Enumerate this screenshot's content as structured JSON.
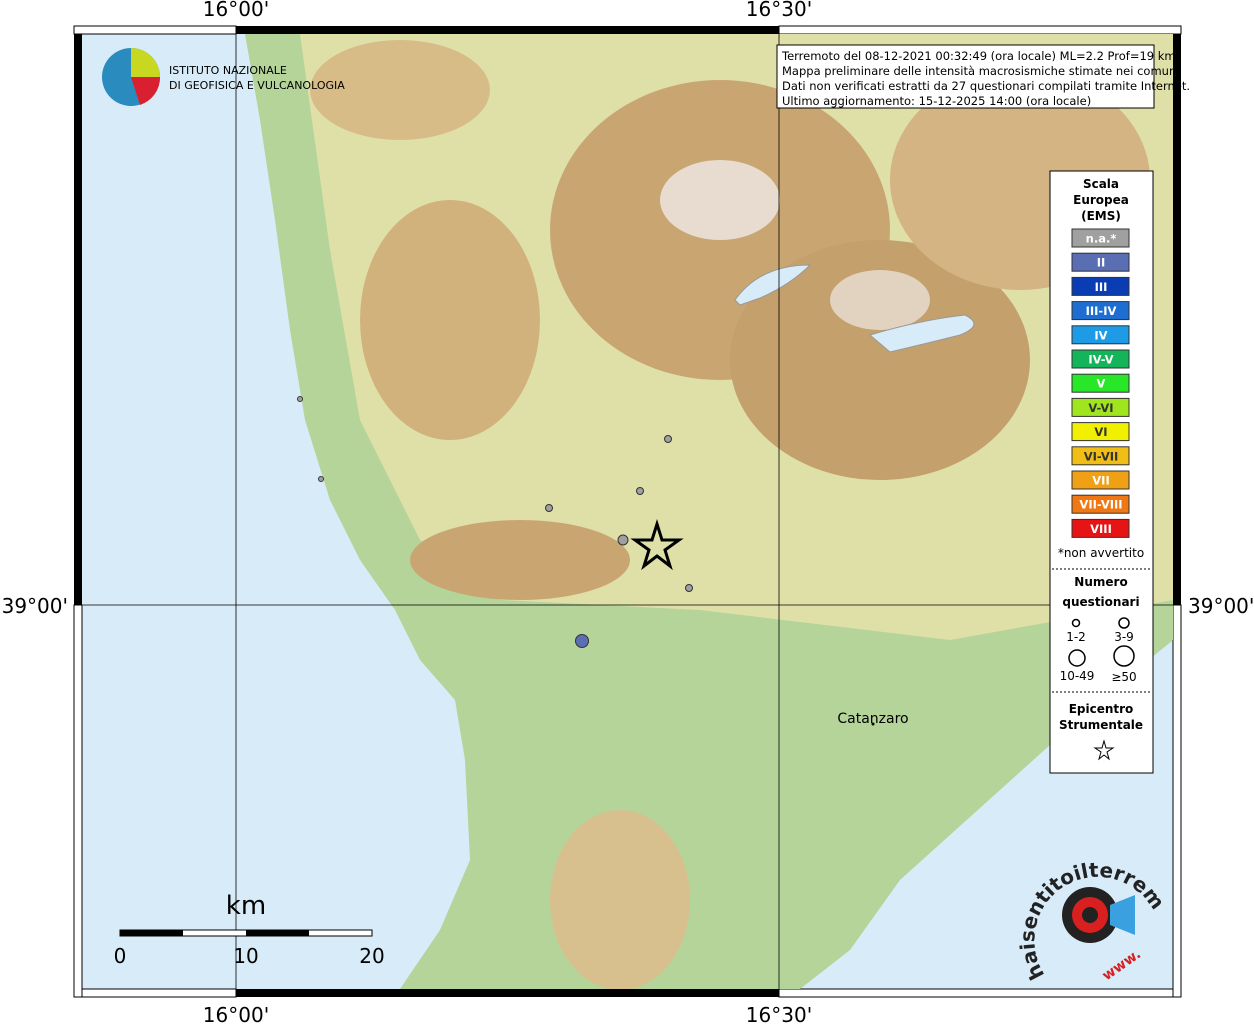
{
  "axis_labels": {
    "top": [
      "16°00'",
      "16°30'"
    ],
    "bottom": [
      "16°00'",
      "16°30'"
    ],
    "left": [
      "39°00'"
    ],
    "right": [
      "39°00'"
    ]
  },
  "logo": {
    "lines": [
      "ISTITUTO NAZIONALE",
      "DI GEOFISICA E VULCANOLOGIA"
    ]
  },
  "info": [
    "Terremoto del 08-12-2021 00:32:49 (ora locale) ML=2.2 Prof=19 km",
    "Mappa preliminare delle intensità macrosismiche stimate nei comuni",
    "Dati non verificati estratti da 27 questionari compilati tramite Internet.",
    "Ultimo aggiornamento: 15-12-2025 14:00 (ora locale)"
  ],
  "legend": {
    "title": [
      "Scala",
      "Europea",
      "(EMS)"
    ],
    "classes": [
      {
        "label": "n.a.*",
        "color": "#a0a0a0"
      },
      {
        "label": "II",
        "color": "#5a6eb4"
      },
      {
        "label": "III",
        "color": "#0a3cb4"
      },
      {
        "label": "III-IV",
        "color": "#1e6ed2"
      },
      {
        "label": "IV",
        "color": "#1e9be6"
      },
      {
        "label": "IV-V",
        "color": "#14b45a"
      },
      {
        "label": "V",
        "color": "#28e628"
      },
      {
        "label": "V-VI",
        "color": "#a0e61e"
      },
      {
        "label": "VI",
        "color": "#f0f000"
      },
      {
        "label": "VI-VII",
        "color": "#f0be14"
      },
      {
        "label": "VII",
        "color": "#f0a014"
      },
      {
        "label": "VII-VIII",
        "color": "#f07814"
      },
      {
        "label": "VIII",
        "color": "#e61414"
      }
    ],
    "note": "*non avvertito",
    "count_title": [
      "Numero",
      "questionari"
    ],
    "sizes": [
      "1-2",
      "3-9",
      "10-49",
      "≥50"
    ],
    "epicenter_title": [
      "Epicentro",
      "Strumentale"
    ]
  },
  "place": "Catanzaro",
  "scale": {
    "unit": "km",
    "labels": [
      "0",
      "10",
      "20"
    ]
  },
  "badge": {
    "www": "www.",
    "name": "haisentitoilterremoto.it"
  }
}
